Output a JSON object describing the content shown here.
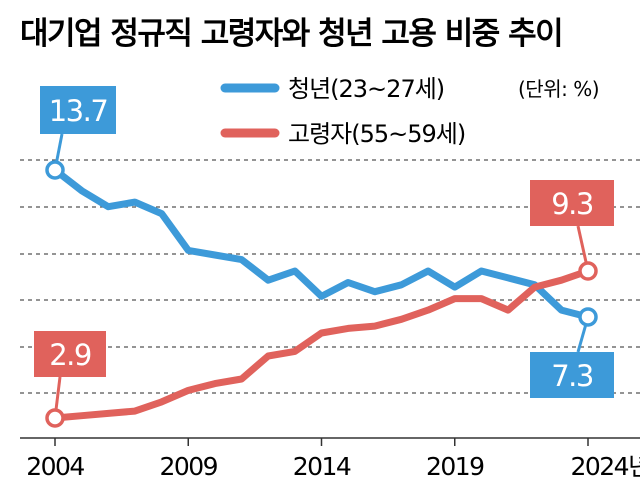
{
  "title": "대기업 정규직 고령자와 청년 고용 비중 추이",
  "unit_label": "(단위: %)",
  "colors": {
    "youth": "#3d9ad9",
    "elderly": "#e0625c",
    "grid": "#555555",
    "axis": "#333333"
  },
  "chart_data": {
    "type": "line",
    "title": "대기업 정규직 고령자와 청년 고용 비중 추이",
    "x": [
      2004,
      2005,
      2006,
      2007,
      2008,
      2009,
      2010,
      2011,
      2012,
      2013,
      2014,
      2015,
      2016,
      2017,
      2018,
      2019,
      2020,
      2021,
      2022,
      2023,
      2024
    ],
    "xticks": [
      2004,
      2009,
      2014,
      2019,
      2024
    ],
    "xtick_labels": [
      "2004",
      "2009",
      "2014",
      "2019",
      "2024년"
    ],
    "ylim": [
      2,
      14.5
    ],
    "grid": true,
    "series": [
      {
        "name": "청년(23~27세)",
        "color": "#3d9ad9",
        "values": [
          13.7,
          12.8,
          12.1,
          12.3,
          11.8,
          10.2,
          10.0,
          9.8,
          8.9,
          9.3,
          8.2,
          8.8,
          8.4,
          8.7,
          9.3,
          8.6,
          9.3,
          9.0,
          8.7,
          7.6,
          7.3
        ],
        "callouts": [
          {
            "index": 0,
            "label": "13.7"
          },
          {
            "index": 20,
            "label": "7.3"
          }
        ]
      },
      {
        "name": "고령자(55~59세)",
        "color": "#e0625c",
        "values": [
          2.9,
          3.0,
          3.1,
          3.2,
          3.6,
          4.1,
          4.4,
          4.6,
          5.6,
          5.8,
          6.6,
          6.8,
          6.9,
          7.2,
          7.6,
          8.1,
          8.1,
          7.6,
          8.6,
          8.9,
          9.3
        ],
        "callouts": [
          {
            "index": 0,
            "label": "2.9"
          },
          {
            "index": 20,
            "label": "9.3"
          }
        ]
      }
    ]
  }
}
